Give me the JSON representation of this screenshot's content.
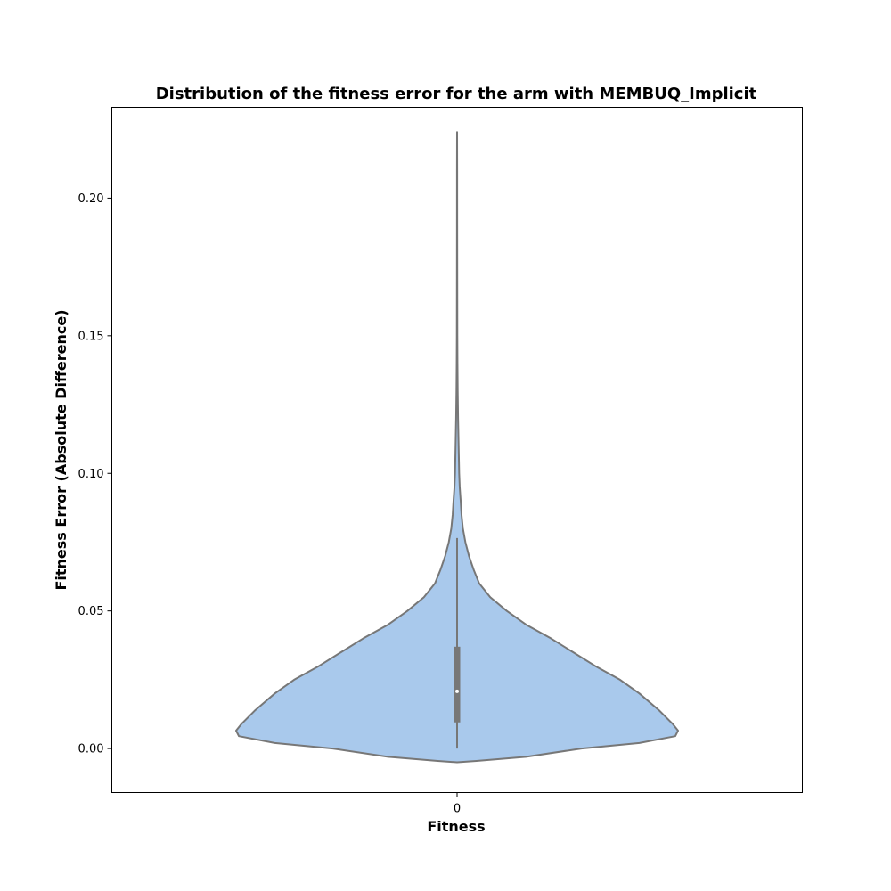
{
  "chart_data": {
    "type": "violin",
    "title": "Distribution of the fitness error for the arm with MEMBUQ_Implicit",
    "xlabel": "Fitness",
    "ylabel": "Fitness Error (Absolute Difference)",
    "categories": [
      "0"
    ],
    "y_ticks": [
      "0.00",
      "0.05",
      "0.10",
      "0.15",
      "0.20"
    ],
    "ylim": [
      -0.016,
      0.233
    ],
    "grid": false,
    "colors": {
      "fill": "#a9c9ec",
      "outline": "#777777",
      "box": "#777777",
      "median": "#ffffff"
    },
    "violin": {
      "max_half_width": 0.8,
      "profile": [
        {
          "y": -0.005,
          "w": 0.0
        },
        {
          "y": -0.0045,
          "w": 0.07
        },
        {
          "y": -0.003,
          "w": 0.25
        },
        {
          "y": 0.0,
          "w": 0.45
        },
        {
          "y": 0.002,
          "w": 0.66
        },
        {
          "y": 0.0045,
          "w": 0.79
        },
        {
          "y": 0.0065,
          "w": 0.8
        },
        {
          "y": 0.009,
          "w": 0.78
        },
        {
          "y": 0.014,
          "w": 0.73
        },
        {
          "y": 0.02,
          "w": 0.66
        },
        {
          "y": 0.025,
          "w": 0.59
        },
        {
          "y": 0.03,
          "w": 0.5
        },
        {
          "y": 0.035,
          "w": 0.42
        },
        {
          "y": 0.04,
          "w": 0.34
        },
        {
          "y": 0.045,
          "w": 0.25
        },
        {
          "y": 0.05,
          "w": 0.18
        },
        {
          "y": 0.055,
          "w": 0.12
        },
        {
          "y": 0.06,
          "w": 0.08
        },
        {
          "y": 0.065,
          "w": 0.06
        },
        {
          "y": 0.07,
          "w": 0.043
        },
        {
          "y": 0.075,
          "w": 0.03
        },
        {
          "y": 0.08,
          "w": 0.021
        },
        {
          "y": 0.085,
          "w": 0.016
        },
        {
          "y": 0.09,
          "w": 0.013
        },
        {
          "y": 0.095,
          "w": 0.0095
        },
        {
          "y": 0.1,
          "w": 0.0075
        },
        {
          "y": 0.11,
          "w": 0.0055
        },
        {
          "y": 0.12,
          "w": 0.0035
        },
        {
          "y": 0.13,
          "w": 0.0022
        },
        {
          "y": 0.14,
          "w": 0.0014
        },
        {
          "y": 0.15,
          "w": 0.0009
        },
        {
          "y": 0.17,
          "w": 0.0006
        },
        {
          "y": 0.19,
          "w": 0.0004
        },
        {
          "y": 0.21,
          "w": 0.0003
        },
        {
          "y": 0.224,
          "w": 0.0
        }
      ]
    },
    "box": {
      "whisker_low": 0.0,
      "q1": 0.0095,
      "median": 0.0208,
      "q3": 0.037,
      "whisker_high": 0.0765
    }
  }
}
